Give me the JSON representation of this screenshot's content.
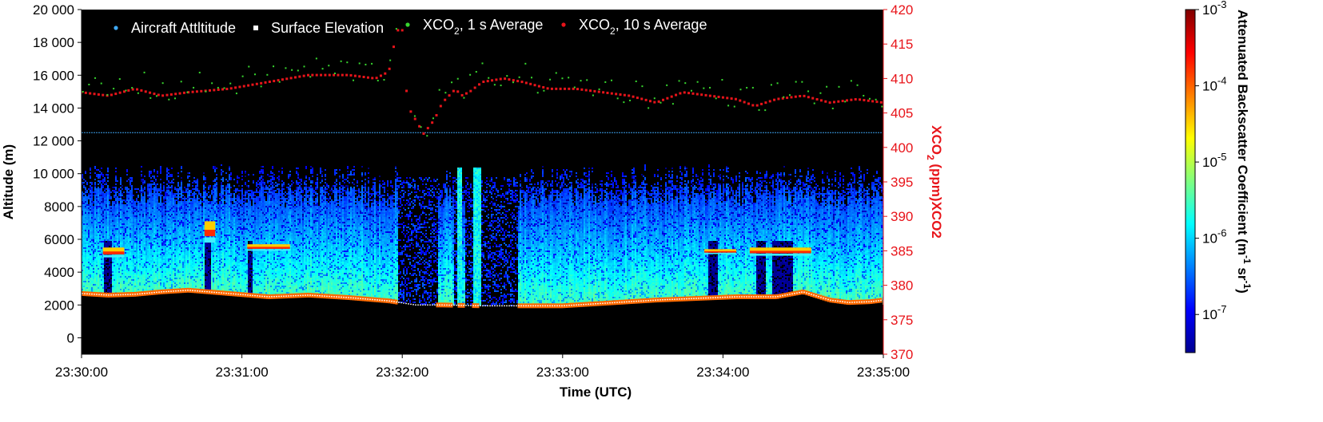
{
  "chart_data": {
    "type": "heatmap",
    "title": "",
    "xlabel": "Time (UTC)",
    "ylabel": "Altitude (m)",
    "y2label": "XCO2 (ppm)XCO2",
    "colorbar_label": "Attenuated Backscatter Coefficient (m-1 sr-1)",
    "x_ticks": [
      "23:30:00",
      "23:31:00",
      "23:32:00",
      "23:33:00",
      "23:34:00",
      "23:35:00"
    ],
    "x_range_seconds": [
      0,
      300
    ],
    "y_ticks": [
      "0",
      "2000",
      "4000",
      "6000",
      "8000",
      "10 000",
      "12 000",
      "14 000",
      "16 000",
      "18 000",
      "20 000"
    ],
    "ylim": [
      -1000,
      20000
    ],
    "y2_ticks": [
      "370",
      "375",
      "380",
      "385",
      "390",
      "395",
      "400",
      "405",
      "410",
      "415",
      "420"
    ],
    "y2lim": [
      370,
      420
    ],
    "colorbar_ticks": [
      "10",
      "10",
      "10",
      "10",
      "10"
    ],
    "colorbar_tick_exponents": [
      "-7",
      "-6",
      "-5",
      "-4",
      "-3"
    ],
    "colorbar_log_range": [
      -7.5,
      -3
    ],
    "legend": [
      {
        "label": "Aircraft Attltitude",
        "color": "#3fa9f5"
      },
      {
        "label": "Surface Elevation",
        "color": "#ffffff"
      },
      {
        "label": "XCO",
        "sub": "2",
        "suffix": ", 1 s Average",
        "color": "#37d62e"
      },
      {
        "label": "XCO",
        "sub": "2",
        "suffix": ", 10 s Average",
        "color": "#e8141a"
      }
    ],
    "aircraft_altitude_m": 12500,
    "surface_elevation": {
      "time_s": [
        0,
        10,
        20,
        30,
        40,
        55,
        70,
        85,
        100,
        115,
        125,
        135,
        150,
        165,
        180,
        190,
        200,
        215,
        230,
        245,
        260,
        270,
        280,
        287,
        295,
        300
      ],
      "altitude_m": [
        2700,
        2600,
        2650,
        2800,
        2900,
        2700,
        2500,
        2600,
        2450,
        2250,
        2000,
        2000,
        1950,
        1950,
        1950,
        2050,
        2150,
        2300,
        2400,
        2500,
        2500,
        2800,
        2300,
        2150,
        2200,
        2300
      ]
    },
    "xco2_10s": {
      "time_s": [
        0,
        10,
        20,
        30,
        40,
        55,
        70,
        85,
        100,
        110,
        115,
        118,
        120,
        122,
        128,
        132,
        135,
        140,
        142,
        145,
        150,
        158,
        165,
        175,
        185,
        195,
        205,
        215,
        225,
        235,
        245,
        252,
        260,
        270,
        280,
        290,
        300
      ],
      "ppm": [
        408,
        407.5,
        408.5,
        407.5,
        408,
        408.5,
        409.5,
        410.5,
        410.5,
        410,
        411,
        417,
        417,
        406,
        402,
        404,
        406.5,
        408.5,
        407.5,
        408,
        409.5,
        410,
        409.5,
        408.5,
        408.5,
        408,
        407.5,
        406.5,
        408,
        407.5,
        407,
        406,
        407,
        407.5,
        406.5,
        407,
        406.5
      ]
    },
    "xco2_1s_scatter_ppm_range": [
      399,
      413
    ],
    "backscatter_features": [
      {
        "name": "cloud",
        "time_s": [
          8,
          16
        ],
        "altitude_m": [
          4900,
          5500
        ]
      },
      {
        "name": "cloud",
        "time_s": [
          46,
          50
        ],
        "altitude_m": [
          5800,
          7100
        ]
      },
      {
        "name": "cloud",
        "time_s": [
          62,
          78
        ],
        "altitude_m": [
          5300,
          5700
        ]
      },
      {
        "name": "cloud",
        "time_s": [
          233,
          245
        ],
        "altitude_m": [
          5100,
          5400
        ]
      },
      {
        "name": "cloud",
        "time_s": [
          250,
          273
        ],
        "altitude_m": [
          5000,
          5500
        ]
      }
    ]
  }
}
